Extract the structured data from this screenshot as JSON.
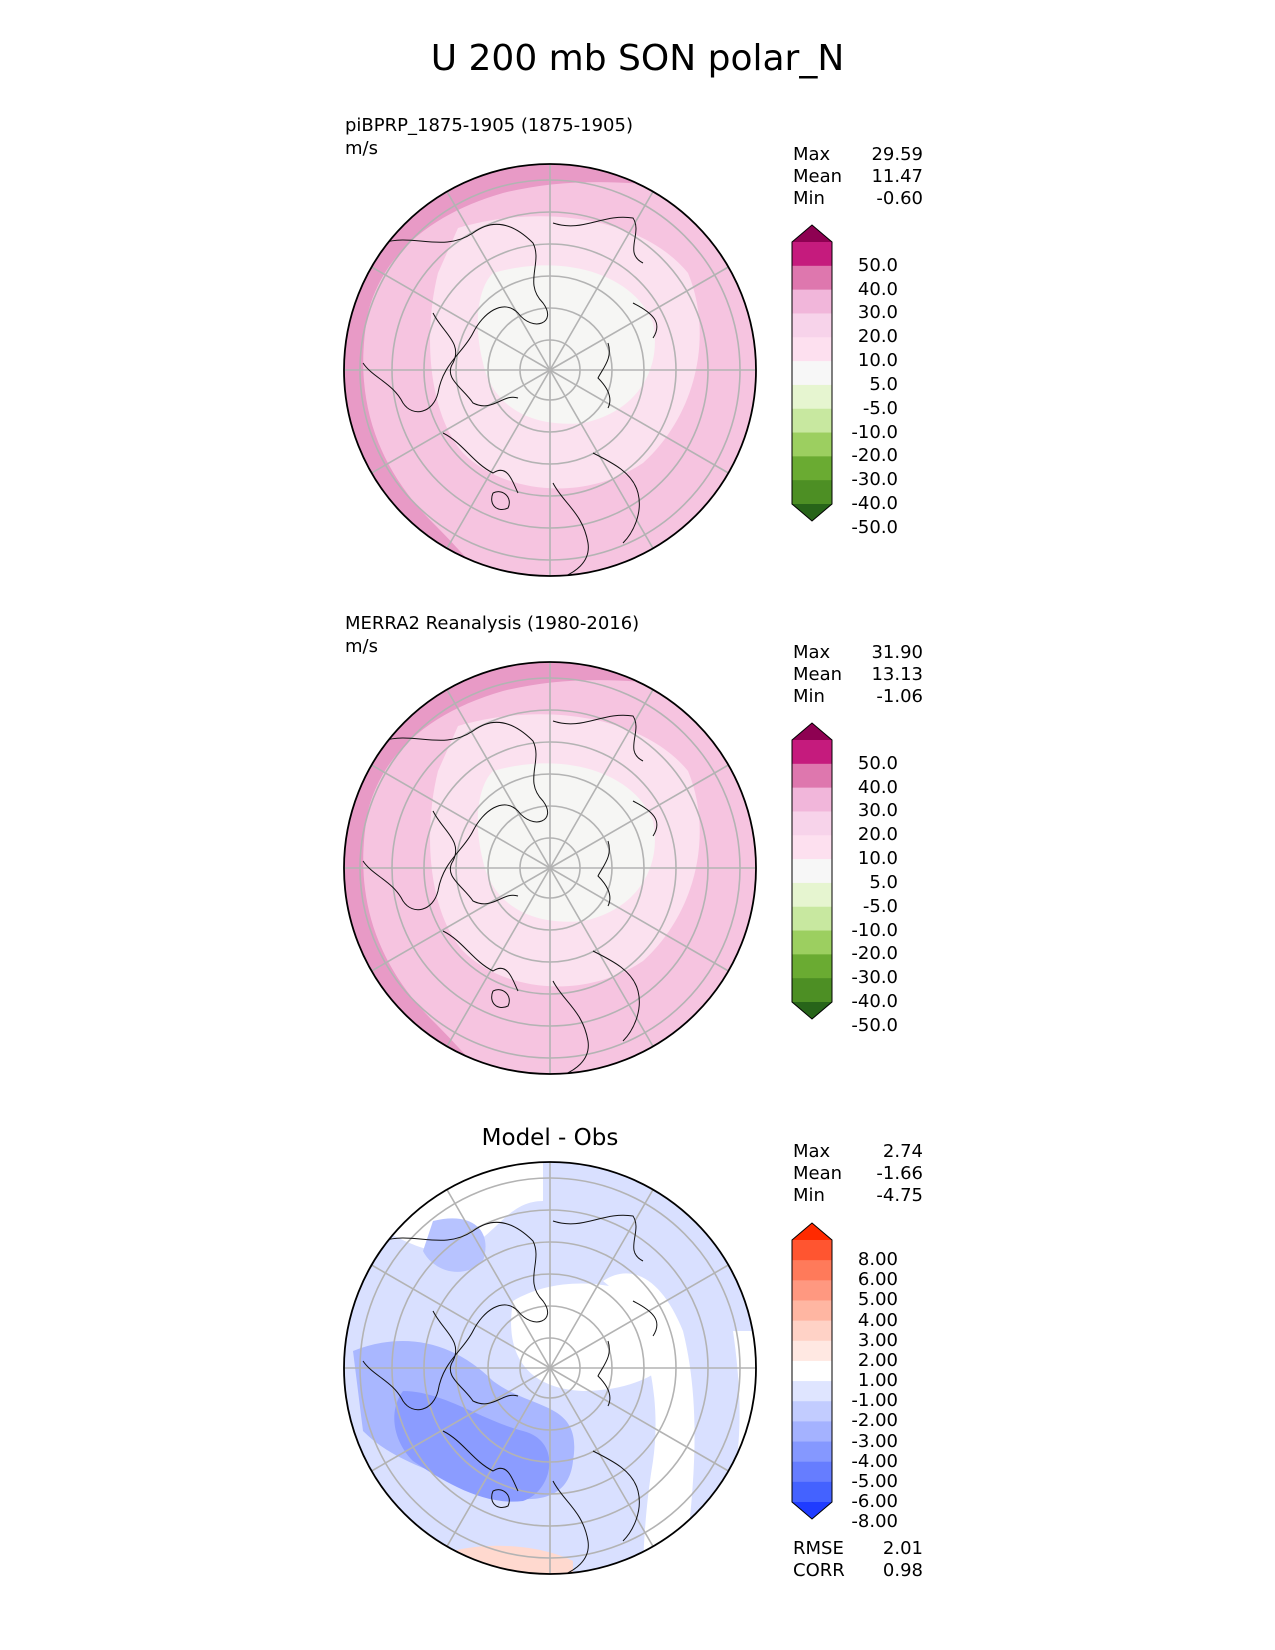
{
  "title": "U 200 mb SON polar_N",
  "panels": [
    {
      "title": "piBPRP_1875-1905 (1875-1905)",
      "units": "m/s",
      "center_title": "",
      "stats": [
        {
          "label": "Max",
          "value": "29.59"
        },
        {
          "label": "Mean",
          "value": "11.47"
        },
        {
          "label": "Min",
          "value": "-0.60"
        }
      ],
      "colorbar": {
        "labels": [
          "50.0",
          "40.0",
          "30.0",
          "20.0",
          "10.0",
          "5.0",
          "-5.0",
          "-10.0",
          "-20.0",
          "-30.0",
          "-40.0",
          "-50.0"
        ],
        "colors": [
          "#8e0152",
          "#c51b7d",
          "#de77ae",
          "#f1b6da",
          "#f7d3ea",
          "#fde0ef",
          "#f7f7f7",
          "#e6f5d0",
          "#c8e8a0",
          "#9ccf60",
          "#6aab32",
          "#4d8f24",
          "#276419"
        ]
      }
    },
    {
      "title": "MERRA2 Reanalysis (1980-2016)",
      "units": "m/s",
      "center_title": "",
      "stats": [
        {
          "label": "Max",
          "value": "31.90"
        },
        {
          "label": "Mean",
          "value": "13.13"
        },
        {
          "label": "Min",
          "value": "-1.06"
        }
      ],
      "colorbar": {
        "labels": [
          "50.0",
          "40.0",
          "30.0",
          "20.0",
          "10.0",
          "5.0",
          "-5.0",
          "-10.0",
          "-20.0",
          "-30.0",
          "-40.0",
          "-50.0"
        ],
        "colors": [
          "#8e0152",
          "#c51b7d",
          "#de77ae",
          "#f1b6da",
          "#f7d3ea",
          "#fde0ef",
          "#f7f7f7",
          "#e6f5d0",
          "#c8e8a0",
          "#9ccf60",
          "#6aab32",
          "#4d8f24",
          "#276419"
        ]
      }
    },
    {
      "title": "",
      "units": "",
      "center_title": "Model - Obs",
      "stats": [
        {
          "label": "Max",
          "value": "2.74"
        },
        {
          "label": "Mean",
          "value": "-1.66"
        },
        {
          "label": "Min",
          "value": "-4.75"
        }
      ],
      "colorbar": {
        "labels": [
          "8.00",
          "6.00",
          "5.00",
          "4.00",
          "3.00",
          "2.00",
          "1.00",
          "-1.00",
          "-2.00",
          "-3.00",
          "-4.00",
          "-5.00",
          "-6.00",
          "-8.00"
        ],
        "colors": [
          "#ff2a00",
          "#ff5530",
          "#ff7a5a",
          "#ff9880",
          "#ffb6a2",
          "#ffd2c6",
          "#ffe8e2",
          "#ffffff",
          "#dfe5ff",
          "#c2ccff",
          "#a4b2ff",
          "#8598ff",
          "#667dff",
          "#4462ff",
          "#1f3cff"
        ]
      },
      "footer": [
        {
          "label": "RMSE",
          "value": "2.01"
        },
        {
          "label": "CORR",
          "value": "0.98"
        }
      ]
    }
  ]
}
